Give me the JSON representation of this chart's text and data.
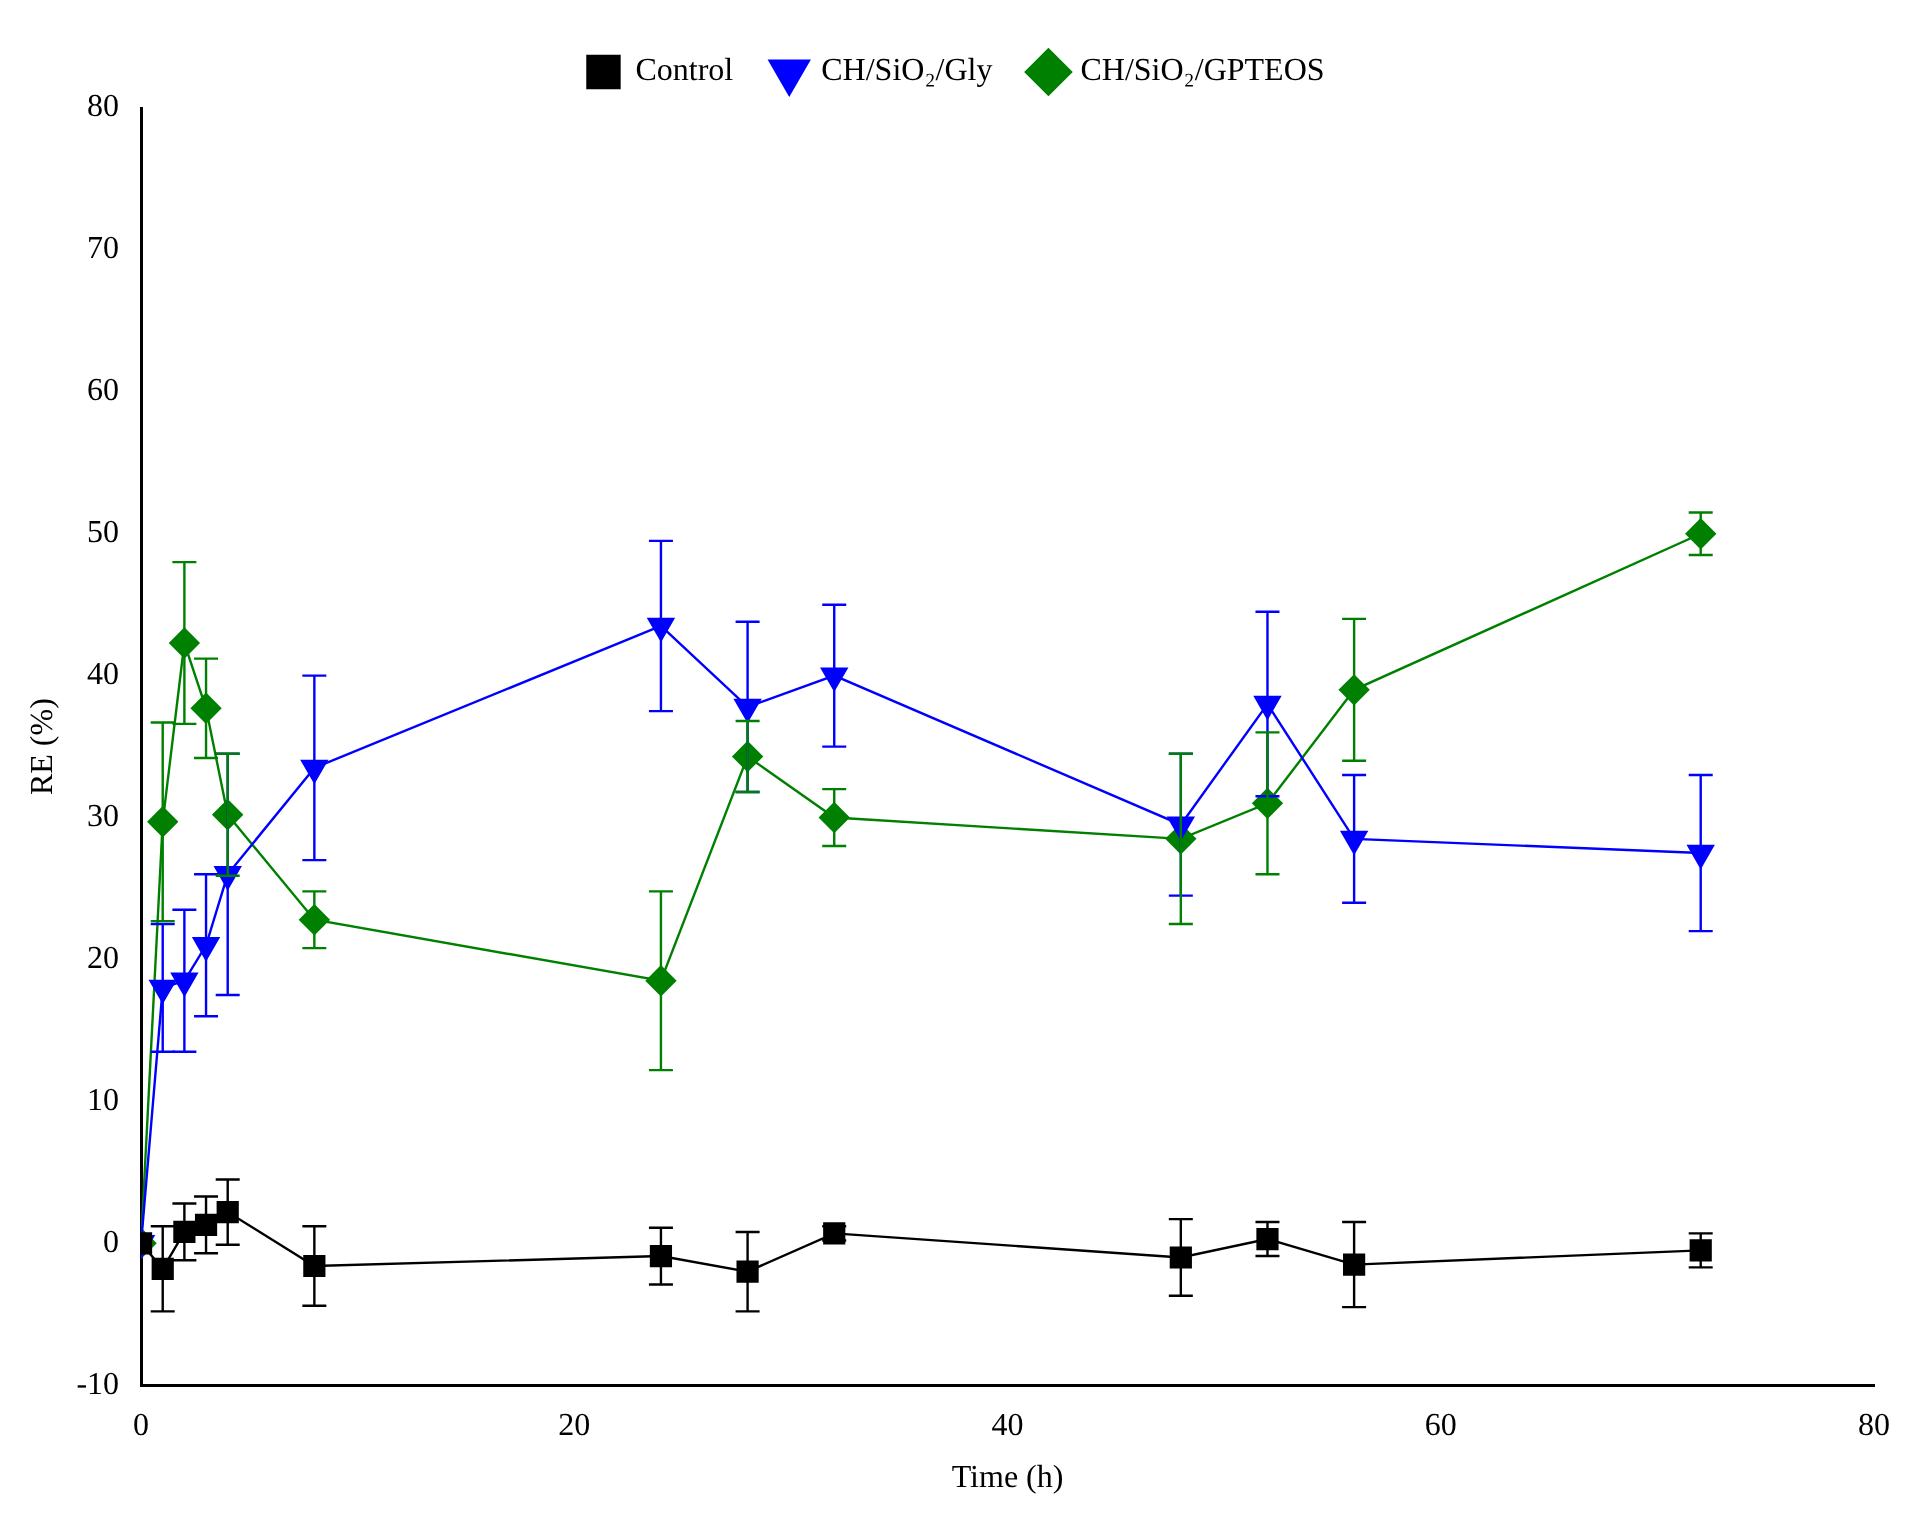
{
  "chart_data": {
    "type": "line",
    "xlabel": "Time (h)",
    "ylabel": "RE (%)",
    "x": [
      0,
      1,
      2,
      3,
      4,
      8,
      24,
      28,
      32,
      48,
      52,
      56,
      72
    ],
    "xlim": [
      0,
      80
    ],
    "xticks": [
      0,
      20,
      40,
      60,
      80
    ],
    "ylim": [
      -10,
      80
    ],
    "yticks": [
      -10,
      0,
      10,
      20,
      30,
      40,
      50,
      60,
      70,
      80
    ],
    "grid": false,
    "legend": "top",
    "series": [
      {
        "name": "Control",
        "color": "#000000",
        "marker": "square",
        "values": [
          0,
          -1.8,
          0.8,
          1.3,
          2.2,
          -1.6,
          -0.9,
          -2,
          0.7,
          -1,
          0.3,
          -1.5,
          -0.5
        ],
        "errors": [
          null,
          3,
          2,
          2,
          2.3,
          2.8,
          2,
          2.8,
          0.5,
          2.7,
          1.2,
          3,
          1.2
        ]
      },
      {
        "name": "CH/SiO₂/Gly",
        "color": "#0000ff",
        "marker": "triangle",
        "values": [
          0,
          18,
          18.5,
          21,
          26,
          33.5,
          43.5,
          37.8,
          40,
          29.5,
          38,
          28.5,
          27.5
        ],
        "errors": [
          null,
          4.5,
          5,
          5,
          8.5,
          6.5,
          6,
          6,
          5,
          5,
          6.5,
          4.5,
          5.5
        ]
      },
      {
        "name": "CH/SiO₂/GPTEOS",
        "color": "#008000",
        "marker": "diamond",
        "values": [
          0,
          29.7,
          42.3,
          37.7,
          30.2,
          22.8,
          18.5,
          34.3,
          30,
          28.5,
          31,
          39,
          50
        ],
        "errors": [
          null,
          7,
          5.7,
          3.5,
          4.3,
          2,
          6.3,
          2.5,
          2,
          6,
          5,
          5,
          1.5
        ]
      }
    ]
  }
}
